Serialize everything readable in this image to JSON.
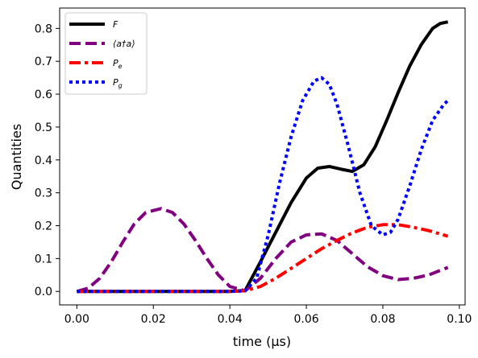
{
  "chart_data": {
    "type": "line",
    "xlabel": "time (μs)",
    "ylabel": "Quantities",
    "xlim": [
      -0.0045,
      0.1015
    ],
    "ylim": [
      -0.041,
      0.862
    ],
    "x_ticks": [
      0.0,
      0.02,
      0.04,
      0.06,
      0.08,
      0.1
    ],
    "x_tick_labels": [
      "0.00",
      "0.02",
      "0.04",
      "0.06",
      "0.08",
      "0.10"
    ],
    "y_ticks": [
      0.0,
      0.1,
      0.2,
      0.3,
      0.4,
      0.5,
      0.6,
      0.7,
      0.8
    ],
    "y_tick_labels": [
      "0.0",
      "0.1",
      "0.2",
      "0.3",
      "0.4",
      "0.5",
      "0.6",
      "0.7",
      "0.8"
    ],
    "grid": false,
    "legend_position": "top-left",
    "series": [
      {
        "name": "F",
        "color": "#000000",
        "style": "solid",
        "x": [
          0.0,
          0.005,
          0.01,
          0.015,
          0.02,
          0.025,
          0.03,
          0.035,
          0.04,
          0.044,
          0.048,
          0.052,
          0.056,
          0.06,
          0.063,
          0.066,
          0.069,
          0.072,
          0.075,
          0.078,
          0.081,
          0.084,
          0.087,
          0.09,
          0.093,
          0.095,
          0.097
        ],
        "values": [
          0.0,
          0.0,
          0.0,
          0.0,
          0.0,
          0.0,
          0.0,
          0.0,
          0.0,
          0.003,
          0.09,
          0.18,
          0.27,
          0.345,
          0.375,
          0.38,
          0.372,
          0.365,
          0.385,
          0.44,
          0.52,
          0.605,
          0.685,
          0.75,
          0.8,
          0.815,
          0.82
        ]
      },
      {
        "name": "⟨a†a⟩",
        "color": "#800080",
        "style": "dashed",
        "x": [
          0.0,
          0.003,
          0.006,
          0.009,
          0.012,
          0.015,
          0.018,
          0.022,
          0.025,
          0.028,
          0.031,
          0.034,
          0.037,
          0.04,
          0.044,
          0.048,
          0.052,
          0.056,
          0.06,
          0.064,
          0.068,
          0.072,
          0.076,
          0.08,
          0.084,
          0.088,
          0.092,
          0.097
        ],
        "values": [
          0.0,
          0.01,
          0.04,
          0.09,
          0.15,
          0.205,
          0.24,
          0.252,
          0.24,
          0.205,
          0.155,
          0.1,
          0.05,
          0.015,
          0.002,
          0.04,
          0.1,
          0.15,
          0.172,
          0.175,
          0.155,
          0.115,
          0.075,
          0.048,
          0.036,
          0.04,
          0.05,
          0.073
        ]
      },
      {
        "name": "P_e",
        "color": "#ff0000",
        "style": "dashdot",
        "x": [
          0.0,
          0.01,
          0.02,
          0.03,
          0.04,
          0.044,
          0.048,
          0.052,
          0.056,
          0.06,
          0.064,
          0.068,
          0.072,
          0.076,
          0.08,
          0.084,
          0.088,
          0.092,
          0.097
        ],
        "values": [
          0.0,
          0.0,
          0.0,
          0.0,
          0.0,
          0.002,
          0.015,
          0.04,
          0.07,
          0.1,
          0.13,
          0.155,
          0.178,
          0.195,
          0.203,
          0.203,
          0.195,
          0.185,
          0.168
        ]
      },
      {
        "name": "P_g",
        "color": "#0000ff",
        "style": "dotted",
        "x": [
          0.0,
          0.01,
          0.02,
          0.03,
          0.04,
          0.044,
          0.047,
          0.05,
          0.053,
          0.056,
          0.059,
          0.062,
          0.064,
          0.066,
          0.068,
          0.071,
          0.074,
          0.077,
          0.08,
          0.082,
          0.084,
          0.087,
          0.09,
          0.093,
          0.096,
          0.097
        ],
        "values": [
          0.0,
          0.0,
          0.0,
          0.0,
          0.0,
          0.002,
          0.04,
          0.17,
          0.33,
          0.47,
          0.58,
          0.64,
          0.65,
          0.63,
          0.57,
          0.44,
          0.3,
          0.2,
          0.172,
          0.18,
          0.22,
          0.32,
          0.43,
          0.52,
          0.57,
          0.58
        ]
      }
    ]
  }
}
